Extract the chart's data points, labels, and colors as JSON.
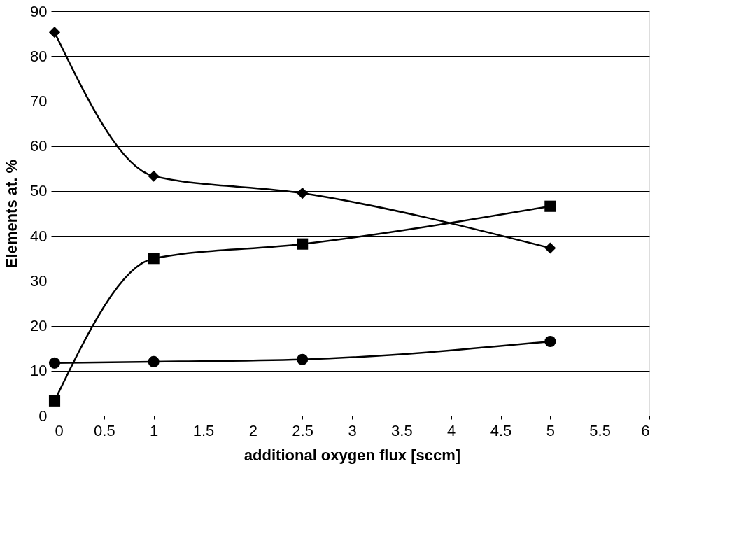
{
  "chart_data": {
    "type": "line",
    "xlabel": "additional oxygen flux [sccm]",
    "ylabel": "Elements at. %",
    "xlim": [
      0,
      6
    ],
    "xticks": [
      0,
      0.5,
      1,
      1.5,
      2,
      2.5,
      3,
      3.5,
      4,
      4.5,
      5,
      5.5,
      6
    ],
    "ylim": [
      0,
      90
    ],
    "yticks": [
      0,
      10,
      20,
      30,
      40,
      50,
      60,
      70,
      80,
      90
    ],
    "grid": "y",
    "legend": false,
    "line_style": "solid",
    "series": [
      {
        "color": "#000000",
        "marker": "diamond",
        "x": [
          0,
          1,
          2.5,
          5
        ],
        "values": [
          85.3,
          53.3,
          49.5,
          37.3
        ]
      },
      {
        "color": "#000000",
        "marker": "square",
        "x": [
          0,
          1,
          2.5,
          5
        ],
        "values": [
          3.3,
          35,
          38.2,
          46.6
        ]
      },
      {
        "color": "#000000",
        "marker": "circle",
        "x": [
          0,
          1,
          2.5,
          5
        ],
        "values": [
          11.7,
          12,
          12.5,
          16.5
        ]
      }
    ]
  }
}
